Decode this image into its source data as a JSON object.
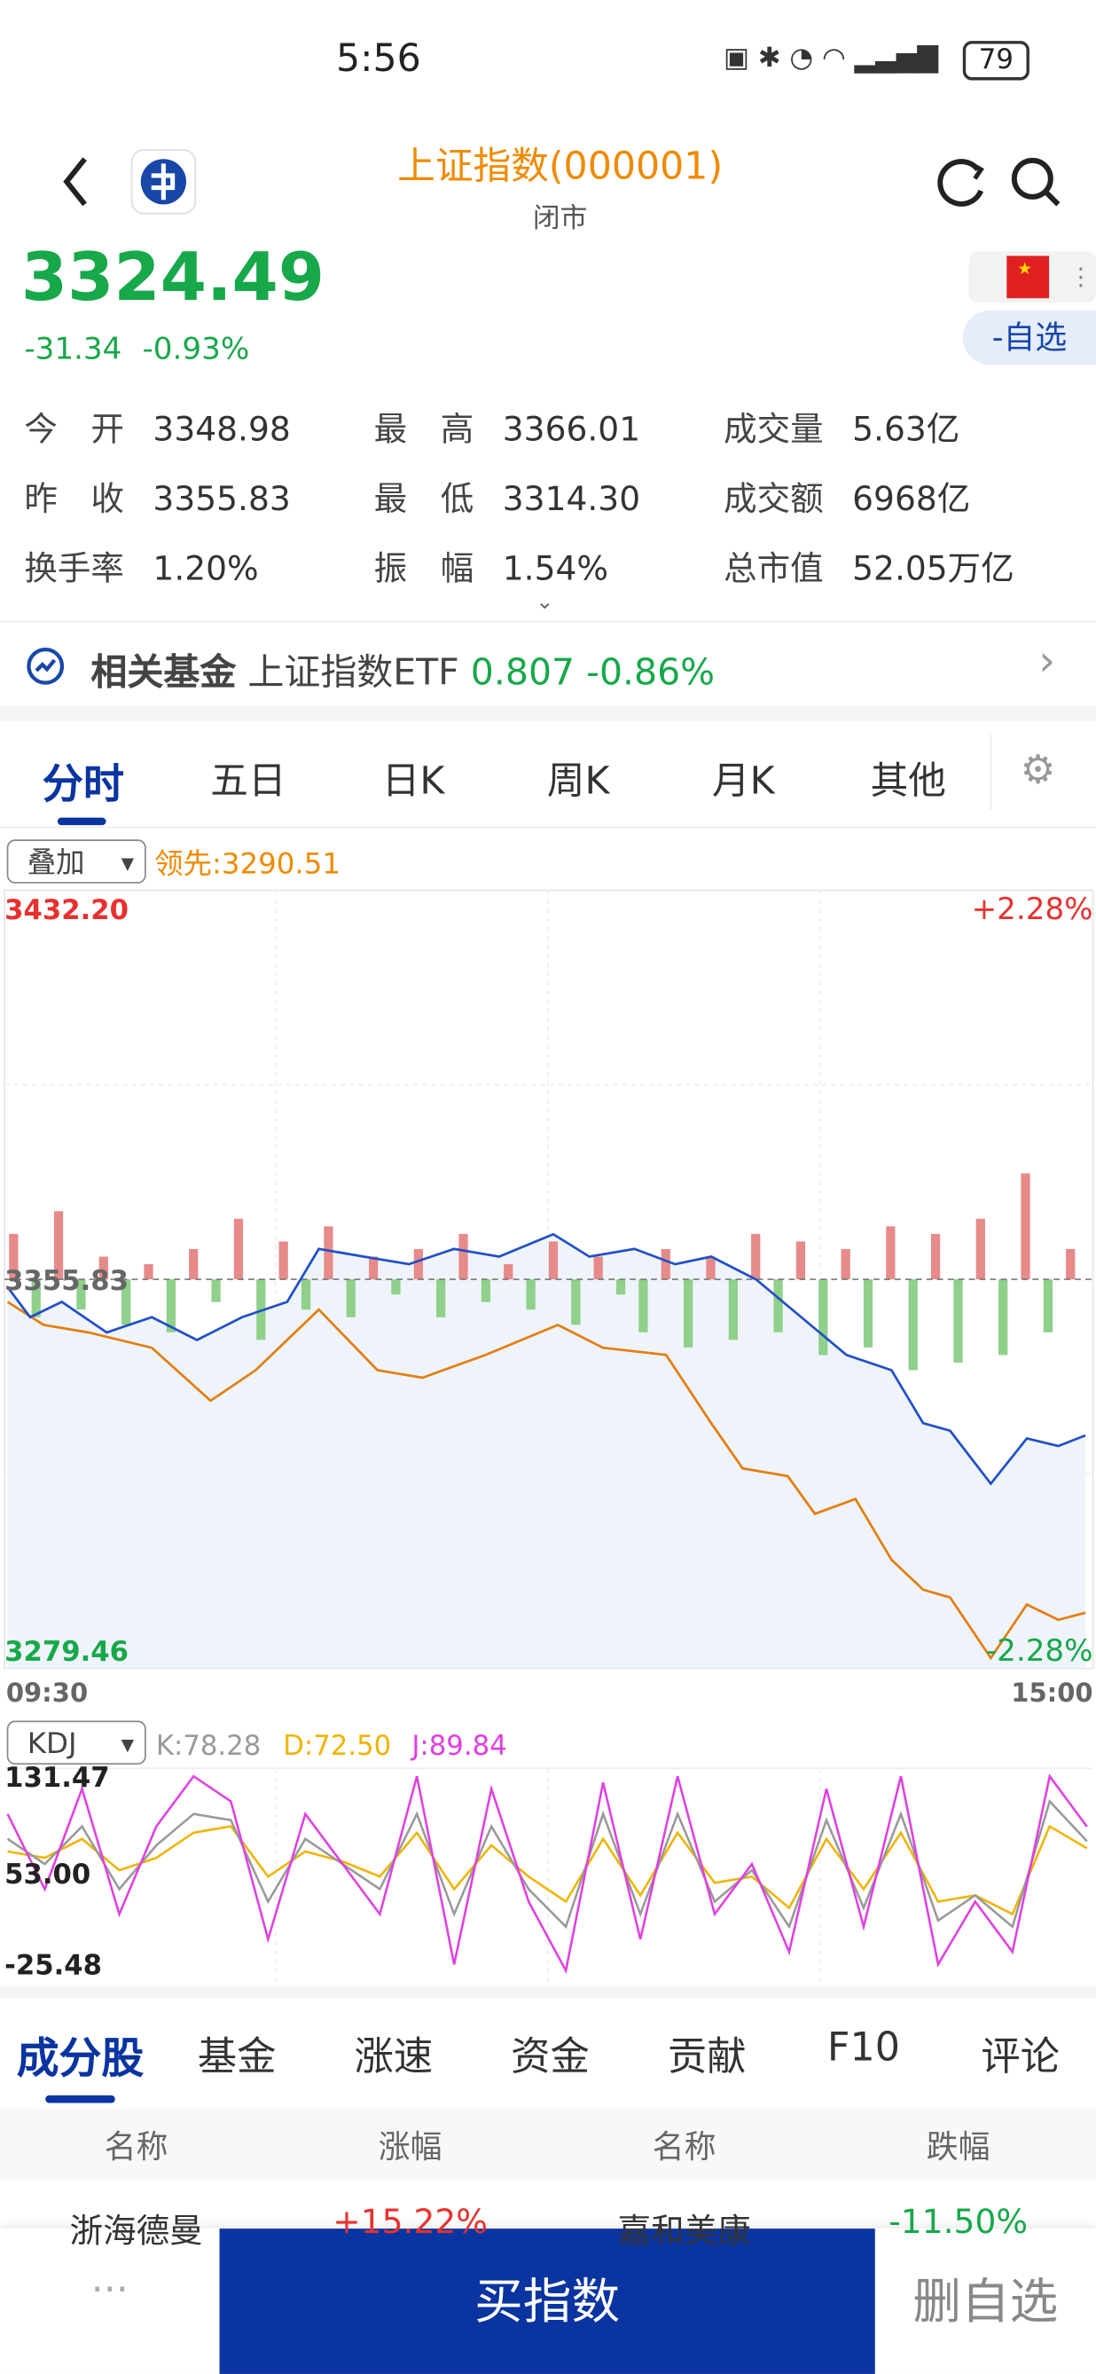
{
  "status_bar": {
    "time": "5:56",
    "battery": "79"
  },
  "header": {
    "title": "上证指数(000001)",
    "subtitle": "闭市"
  },
  "quote": {
    "price": "3324.49",
    "change": "-31.34",
    "change_pct": "-0.93%",
    "watch_button": "-自选"
  },
  "stats": [
    {
      "label": "今　开",
      "value": "3348.98"
    },
    {
      "label": "最　高",
      "value": "3366.01"
    },
    {
      "label": "成交量",
      "value": "5.63亿"
    },
    {
      "label": "昨　收",
      "value": "3355.83"
    },
    {
      "label": "最　低",
      "value": "3314.30"
    },
    {
      "label": "成交额",
      "value": "6968亿"
    },
    {
      "label": "换手率",
      "value": "1.20%"
    },
    {
      "label": "振　幅",
      "value": "1.54%"
    },
    {
      "label": "总市值",
      "value": "52.05万亿"
    }
  ],
  "related_fund": {
    "label": "相关基金",
    "name": "上证指数ETF",
    "price": "0.807",
    "change": "-0.86%"
  },
  "chart_tabs": [
    "分时",
    "五日",
    "日K",
    "周K",
    "月K",
    "其他"
  ],
  "intraday": {
    "overlay_select": "叠加",
    "lead_label": "领先:3290.51",
    "ylim": [
      {
        "value": 3279.46,
        "label": "3279.46"
      },
      {
        "value": 3432.2,
        "label": "3432.20"
      }
    ],
    "prev_close": {
      "value": 3355.83,
      "label": "3355.83"
    },
    "pct_top": "+2.28%",
    "pct_bottom": "-2.28%",
    "x_start": "09:30",
    "x_end": "15:00",
    "index_line": {
      "x": [
        0,
        5,
        12,
        22,
        32,
        42,
        52,
        62,
        69,
        79,
        89,
        99,
        109,
        121,
        129,
        139,
        148,
        156,
        166,
        176,
        186,
        196,
        203,
        209,
        218,
        226,
        233,
        239
      ],
      "values": [
        3354.3,
        3348.4,
        3351.4,
        3345.4,
        3348.4,
        3343.9,
        3348.4,
        3351.4,
        3361.8,
        3360.3,
        3358.8,
        3361.8,
        3360.3,
        3364.7,
        3360.3,
        3361.8,
        3358.8,
        3360.3,
        3355.8,
        3348.4,
        3341.0,
        3338.0,
        3327.6,
        3326.1,
        3315.7,
        3324.6,
        3323.1,
        3325.2
      ]
    },
    "lead_line": {
      "x": [
        0,
        8,
        18,
        32,
        45,
        55,
        69,
        82,
        92,
        106,
        122,
        132,
        146,
        156,
        163,
        173,
        179,
        188,
        196,
        203,
        209,
        218,
        226,
        233,
        239
      ],
      "values": [
        3351.4,
        3346.9,
        3345.4,
        3342.4,
        3332.0,
        3338.0,
        3349.9,
        3338.0,
        3336.5,
        3341.0,
        3346.9,
        3342.4,
        3341.0,
        3327.6,
        3318.7,
        3317.2,
        3309.8,
        3312.7,
        3300.8,
        3294.9,
        3293.4,
        3281.5,
        3292.0,
        3289.0,
        3290.4
      ]
    },
    "volume_diff": [
      30,
      -25,
      45,
      -20,
      15,
      -30,
      10,
      -35,
      20,
      -15,
      40,
      -40,
      25,
      -20,
      35,
      -25,
      15,
      -10,
      20,
      -25,
      30,
      -15,
      10,
      -20,
      25,
      -30,
      15,
      -10,
      -35,
      20,
      -45,
      15,
      -40,
      30,
      -35,
      25,
      -50,
      20,
      -45,
      35,
      -60,
      30,
      -55,
      40,
      -50,
      70,
      -35,
      20
    ]
  },
  "kdj": {
    "select": "KDJ",
    "k_label": "K:78.28",
    "d_label": "D:72.50",
    "j_label": "J:89.84",
    "ylim": [
      {
        "value": -25.48,
        "label": "-25.48"
      },
      {
        "value": 131.47,
        "label": "131.47"
      }
    ],
    "mid": {
      "value": 53.0,
      "label": "53.00"
    },
    "k": [
      80,
      60,
      90,
      40,
      75,
      100,
      95,
      30,
      80,
      60,
      40,
      100,
      20,
      90,
      40,
      10,
      100,
      20,
      100,
      30,
      55,
      10,
      95,
      25,
      100,
      15,
      35,
      10,
      110,
      78.28
    ],
    "d": [
      70,
      65,
      80,
      55,
      65,
      85,
      90,
      50,
      70,
      62,
      50,
      85,
      40,
      75,
      50,
      30,
      80,
      35,
      85,
      45,
      50,
      25,
      80,
      40,
      85,
      30,
      35,
      20,
      90,
      72.5
    ],
    "j": [
      100,
      40,
      120,
      20,
      90,
      130,
      110,
      0,
      100,
      60,
      20,
      130,
      -20,
      120,
      30,
      -25,
      125,
      0,
      130,
      20,
      60,
      -10,
      120,
      10,
      130,
      -20,
      30,
      -10,
      130,
      89.84
    ]
  },
  "bottom_tabs": [
    "成分股",
    "基金",
    "涨速",
    "资金",
    "贡献",
    "F10",
    "评论"
  ],
  "table": {
    "headers": [
      "名称",
      "涨幅",
      "名称",
      "跌幅"
    ],
    "rows": [
      [
        "浙海德曼",
        "+15.22%",
        "嘉和美康",
        "-11.50%"
      ]
    ]
  },
  "action_bar": {
    "more": "···",
    "buy": "买指数",
    "remove": "删自选"
  }
}
